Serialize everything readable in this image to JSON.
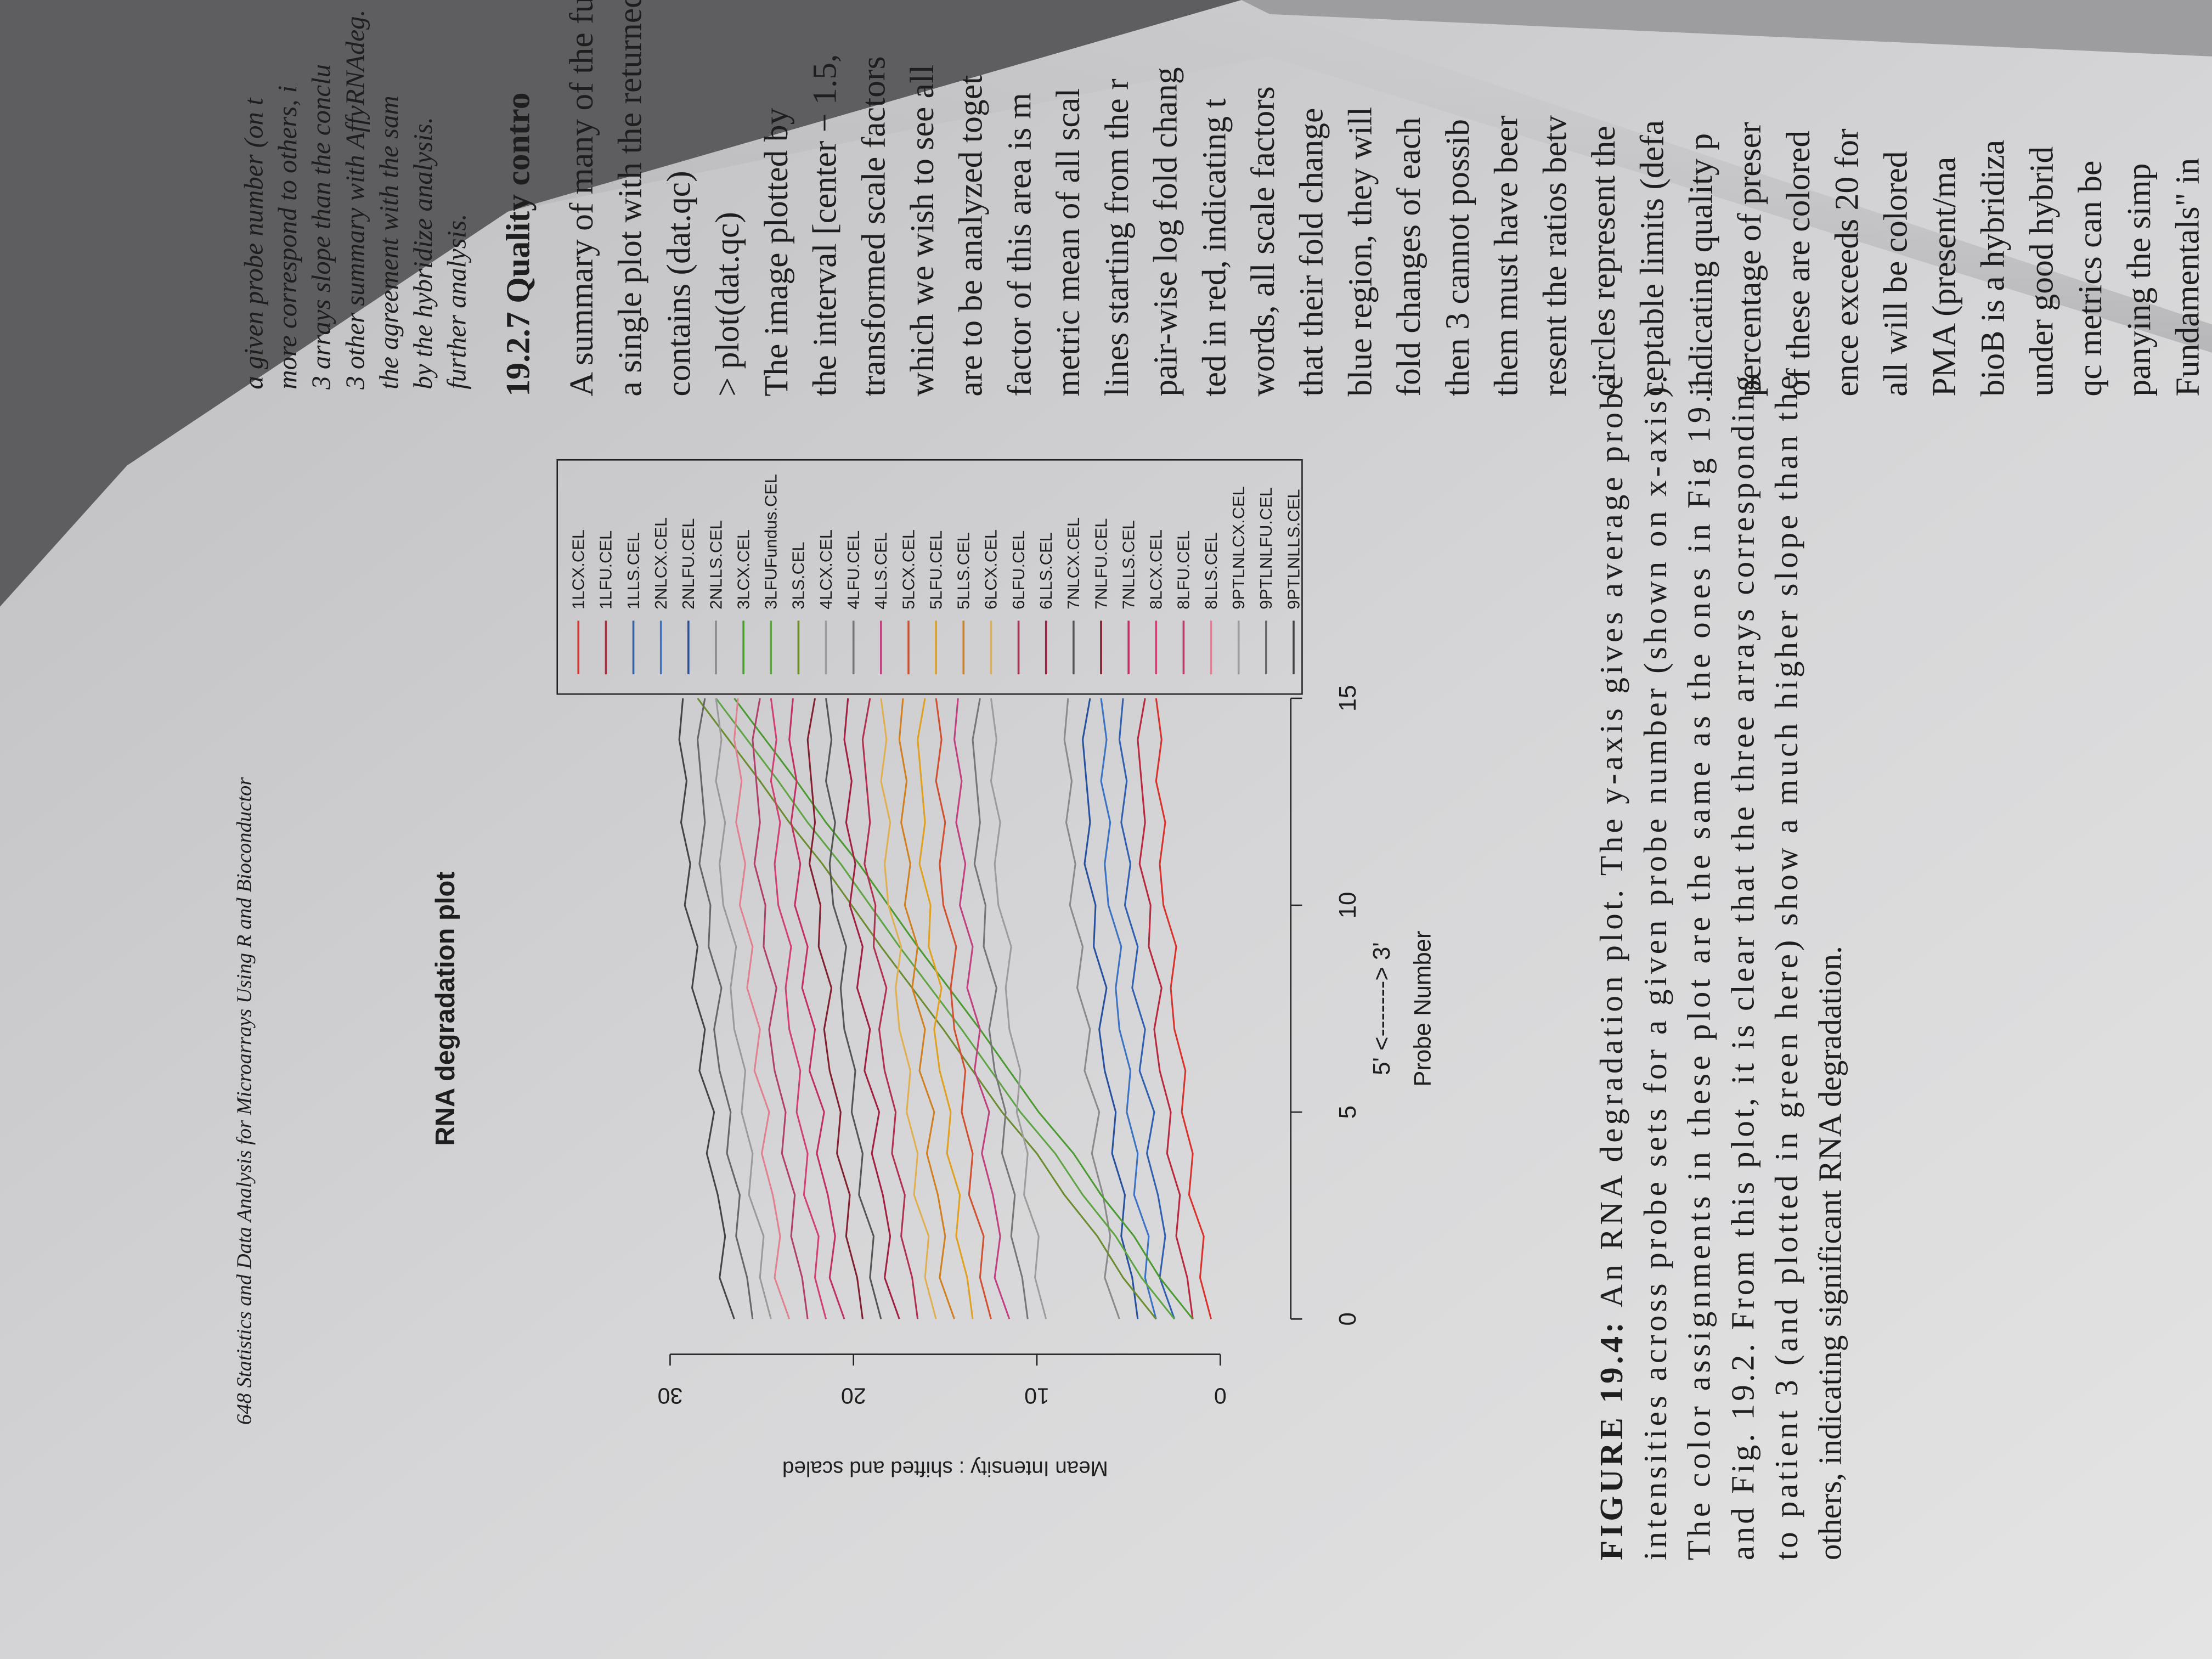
{
  "header": "648 Statistics and Data Analysis for Microarrays Using R and Bioconductor",
  "chart_data": {
    "type": "line",
    "title": "RNA degradation plot",
    "x_direction_label": "5' <-------> 3'",
    "xlabel": "Probe Number",
    "ylabel": "Mean Intensity : shifted and scaled",
    "x": [
      0,
      1,
      2,
      3,
      4,
      5,
      6,
      7,
      8,
      9,
      10,
      11,
      12,
      13,
      14,
      15
    ],
    "xlim": [
      0,
      15
    ],
    "xticks": [
      0,
      5,
      10,
      15
    ],
    "ylim": [
      -1,
      31
    ],
    "yticks": [
      0,
      10,
      20,
      30
    ],
    "legend": "top-right",
    "series": [
      {
        "name": "1LCX.CEL",
        "color": "#d8322c",
        "values": [
          0.5,
          1.1,
          0.9,
          1.7,
          1.5,
          2.1,
          1.9,
          2.5,
          2.7,
          2.4,
          3.1,
          3.3,
          3.0,
          3.5,
          3.2,
          3.5
        ]
      },
      {
        "name": "1LFU.CEL",
        "color": "#b8283e",
        "values": [
          1.5,
          1.8,
          2.4,
          2.2,
          2.9,
          2.7,
          3.3,
          3.6,
          3.2,
          3.9,
          3.8,
          4.4,
          4.1,
          4.3,
          4.5,
          4.1
        ]
      },
      {
        "name": "1LLS.CEL",
        "color": "#2f5fae",
        "values": [
          2.5,
          3.3,
          3.0,
          3.4,
          4.0,
          3.6,
          4.4,
          4.1,
          4.8,
          4.5,
          5.2,
          4.9,
          5.4,
          5.1,
          5.5,
          5.3
        ]
      },
      {
        "name": "2NLCX.CEL",
        "color": "#3b72c2",
        "values": [
          3.5,
          4.1,
          3.9,
          4.7,
          4.5,
          5.1,
          4.9,
          5.5,
          5.7,
          5.4,
          6.1,
          6.3,
          6.0,
          6.5,
          6.2,
          6.5
        ]
      },
      {
        "name": "2NLFU.CEL",
        "color": "#27509e",
        "values": [
          4.5,
          4.8,
          5.4,
          5.2,
          5.9,
          5.7,
          6.3,
          6.6,
          6.2,
          6.9,
          6.8,
          7.4,
          7.1,
          7.3,
          7.5,
          7.1
        ]
      },
      {
        "name": "2NLLS.CEL",
        "color": "#8a8a8a",
        "values": [
          5.5,
          6.3,
          6.0,
          6.4,
          7.0,
          6.6,
          7.4,
          7.1,
          7.8,
          7.5,
          8.2,
          7.9,
          8.4,
          8.1,
          8.5,
          8.3
        ]
      },
      {
        "name": "3LCX.CEL",
        "color": "#4a9a30",
        "values": [
          1.5,
          3.3,
          4.7,
          6.5,
          8.0,
          9.9,
          11.5,
          13.1,
          14.8,
          16.5,
          18.1,
          19.7,
          21.5,
          23.1,
          24.8,
          26.5
        ]
      },
      {
        "name": "3LFUFundus.CEL",
        "color": "#5ea442",
        "values": [
          2.5,
          4.3,
          5.7,
          7.5,
          9.0,
          10.9,
          12.5,
          14.1,
          15.8,
          17.5,
          19.1,
          20.7,
          22.5,
          24.1,
          25.8,
          27.5
        ]
      },
      {
        "name": "3LS.CEL",
        "color": "#6b8c2e",
        "values": [
          3.5,
          5.3,
          6.7,
          8.5,
          10.0,
          11.9,
          13.5,
          15.1,
          16.8,
          18.5,
          20.1,
          21.7,
          23.5,
          25.1,
          26.8,
          28.5
        ]
      },
      {
        "name": "4LCX.CEL",
        "color": "#9c9c9c",
        "values": [
          9.5,
          10.1,
          9.9,
          10.7,
          10.5,
          11.1,
          10.9,
          11.5,
          11.7,
          11.4,
          12.1,
          12.3,
          12.0,
          12.5,
          12.2,
          12.5
        ]
      },
      {
        "name": "4LFU.CEL",
        "color": "#767676",
        "values": [
          10.5,
          10.8,
          11.4,
          11.2,
          11.9,
          11.7,
          12.3,
          12.6,
          12.2,
          12.9,
          12.8,
          13.4,
          13.1,
          13.3,
          13.5,
          13.1
        ]
      },
      {
        "name": "4LLS.CEL",
        "color": "#c04080",
        "values": [
          11.5,
          12.3,
          12.0,
          12.4,
          13.0,
          12.6,
          13.4,
          13.1,
          13.8,
          13.5,
          14.2,
          13.9,
          14.4,
          14.1,
          14.5,
          14.3
        ]
      },
      {
        "name": "5LCX.CEL",
        "color": "#d05030",
        "values": [
          12.5,
          13.1,
          12.9,
          13.7,
          13.5,
          14.1,
          13.9,
          14.5,
          14.7,
          14.4,
          15.1,
          15.3,
          15.0,
          15.5,
          15.2,
          15.5
        ]
      },
      {
        "name": "5LFU.CEL",
        "color": "#e0a020",
        "values": [
          13.5,
          13.8,
          14.4,
          14.2,
          14.9,
          14.7,
          15.3,
          15.6,
          15.2,
          15.9,
          15.8,
          16.4,
          16.1,
          16.3,
          16.5,
          16.1
        ]
      },
      {
        "name": "5LLS.CEL",
        "color": "#d08020",
        "values": [
          14.5,
          15.3,
          15.0,
          15.4,
          16.0,
          15.6,
          16.4,
          16.1,
          16.8,
          16.5,
          17.2,
          16.9,
          17.4,
          17.1,
          17.5,
          17.3
        ]
      },
      {
        "name": "6LCX.CEL",
        "color": "#e0b050",
        "values": [
          15.5,
          16.1,
          15.9,
          16.7,
          16.5,
          17.1,
          16.9,
          17.5,
          17.7,
          17.4,
          18.1,
          18.3,
          18.0,
          18.5,
          18.2,
          18.5
        ]
      },
      {
        "name": "6LFU.CEL",
        "color": "#b03050",
        "values": [
          16.5,
          16.8,
          17.4,
          17.2,
          17.9,
          17.7,
          18.3,
          18.6,
          18.2,
          18.9,
          18.8,
          19.4,
          19.1,
          19.3,
          19.5,
          19.1
        ]
      },
      {
        "name": "6LLS.CEL",
        "color": "#a02040",
        "values": [
          17.5,
          18.3,
          18.0,
          18.4,
          19.0,
          18.6,
          19.4,
          19.1,
          19.8,
          19.5,
          20.2,
          19.9,
          20.4,
          20.1,
          20.5,
          20.3
        ]
      },
      {
        "name": "7NLCX.CEL",
        "color": "#555555",
        "values": [
          18.5,
          19.1,
          18.9,
          19.7,
          19.5,
          20.1,
          19.9,
          20.5,
          20.7,
          20.4,
          21.1,
          21.3,
          21.0,
          21.5,
          21.2,
          21.5
        ]
      },
      {
        "name": "7NLFU.CEL",
        "color": "#802030",
        "values": [
          19.5,
          19.8,
          20.4,
          20.2,
          20.9,
          20.7,
          21.3,
          21.6,
          21.2,
          21.9,
          21.8,
          22.4,
          22.1,
          22.3,
          22.5,
          22.1
        ]
      },
      {
        "name": "7NLLS.CEL",
        "color": "#c03060",
        "values": [
          20.5,
          21.3,
          21.0,
          21.4,
          22.0,
          21.6,
          22.4,
          22.1,
          22.8,
          22.5,
          23.2,
          22.9,
          23.4,
          23.1,
          23.5,
          23.3
        ]
      },
      {
        "name": "8LCX.CEL",
        "color": "#d04070",
        "values": [
          21.5,
          22.1,
          21.9,
          22.7,
          22.5,
          23.1,
          22.9,
          23.5,
          23.7,
          23.4,
          24.1,
          24.3,
          24.0,
          24.5,
          24.2,
          24.5
        ]
      },
      {
        "name": "8LFU.CEL",
        "color": "#b0406a",
        "values": [
          22.5,
          22.8,
          23.4,
          23.2,
          23.9,
          23.7,
          24.3,
          24.6,
          24.2,
          24.9,
          24.8,
          25.4,
          25.1,
          25.3,
          25.5,
          25.1
        ]
      },
      {
        "name": "8LLS.CEL",
        "color": "#e08090",
        "values": [
          23.5,
          24.3,
          24.0,
          24.4,
          25.0,
          24.6,
          25.4,
          25.1,
          25.8,
          25.5,
          26.2,
          25.9,
          26.4,
          26.1,
          26.5,
          26.3
        ]
      },
      {
        "name": "9PTLNLCX.CEL",
        "color": "#9a9a9a",
        "values": [
          24.5,
          25.1,
          24.9,
          25.7,
          25.5,
          26.1,
          25.9,
          26.5,
          26.7,
          26.4,
          27.1,
          27.3,
          27.0,
          27.5,
          27.2,
          27.5
        ]
      },
      {
        "name": "9PTLNLFU.CEL",
        "color": "#666666",
        "values": [
          25.5,
          25.8,
          26.4,
          26.2,
          26.9,
          26.7,
          27.3,
          27.6,
          27.2,
          27.9,
          27.8,
          28.4,
          28.1,
          28.3,
          28.5,
          28.1
        ]
      },
      {
        "name": "9PTLNLLS.CEL",
        "color": "#444444",
        "values": [
          26.5,
          27.3,
          27.0,
          27.4,
          28.0,
          27.6,
          28.4,
          28.1,
          28.8,
          28.5,
          29.2,
          28.9,
          29.4,
          29.1,
          29.5,
          29.3
        ]
      }
    ]
  },
  "caption": {
    "label": "FIGURE 19.4:",
    "lines": [
      "An RNA degradation plot. The y-axis gives average probe",
      "intensities across probe sets for a given probe number (shown on x-axis).",
      "The color assignments in these plot are the same as the ones in Fig 19.1",
      "and Fig. 19.2. From this plot, it is clear that the three arrays corresponding",
      "to patient 3 (and plotted in green here) show a much higher slope than the",
      "others, indicating significant RNA degradation."
    ]
  },
  "facing_page": {
    "top_lines": [
      "a given probe number (on t",
      "more correspond to others, i",
      "3 arrays slope than the conclu",
      "3 other summary with AffyRNAdeg.",
      "the agreement with the sam",
      "by the hybridize analysis.",
      "further analysis."
    ],
    "heading": "19.2.7 Quality contro",
    "lines": [
      "A summary of many of the func",
      "a single plot with the returned",
      "contains (dat.qc)",
      "> plot(dat.qc)",
      "The image plotted by",
      "the interval [center − 1.5,",
      "transformed scale factors",
      "which we wish to see all",
      "are to be analyzed toget",
      "factor of this area is m",
      "metric mean of all scal",
      "lines starting from the r",
      "pair-wise log fold chang",
      "ted in red, indicating t",
      "words, all scale factors",
      "that their fold change",
      "blue region, they will",
      "fold changes of each",
      "then 3 cannot possib",
      "them must have beer",
      "resent the ratios betv",
      "circles represent the",
      "ceptable limits (defa",
      "indicating quality p",
      "percentage of preser",
      "of these are colored",
      "ence exceeds 20 for",
      "all will be colored",
      "PMA (present/ma",
      "bioB is a hybridiza",
      "under good hybrid",
      "qc metrics can be",
      "panying the simp",
      "Fundamentals\" in"
    ]
  }
}
